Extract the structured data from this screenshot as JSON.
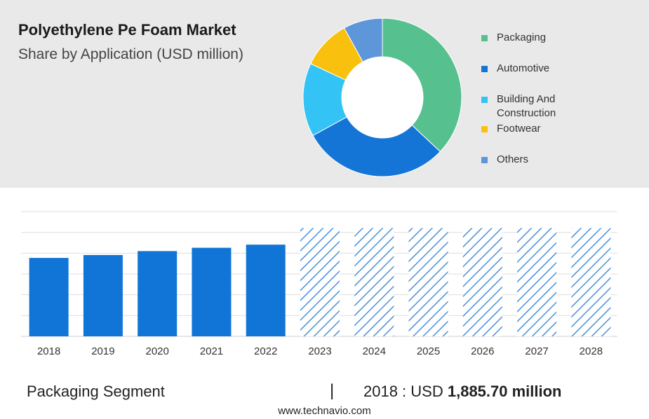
{
  "header": {
    "title": "Polyethylene Pe Foam Market",
    "subtitle": "Share by Application (USD million)"
  },
  "colors": {
    "panel_bg": "#e9e9e9",
    "bar_solid": "#1075d6",
    "bar_hatch": "#4a90d9",
    "grid": "#dedede"
  },
  "chart_data": [
    {
      "type": "pie",
      "donut": true,
      "segments": [
        {
          "label": "Packaging",
          "value": 37,
          "color": "#57c08f"
        },
        {
          "label": "Automotive",
          "value": 30,
          "color": "#1575d6"
        },
        {
          "label": "Building And Construction",
          "value": 15,
          "color": "#33c3f4"
        },
        {
          "label": "Footwear",
          "value": 10,
          "color": "#f9c10d"
        },
        {
          "label": "Others",
          "value": 8,
          "color": "#5e97d9"
        }
      ]
    },
    {
      "type": "bar",
      "categories": [
        "2018",
        "2019",
        "2020",
        "2021",
        "2022",
        "2023",
        "2024",
        "2025",
        "2026",
        "2027",
        "2028"
      ],
      "values": [
        1885.7,
        1955,
        2050,
        2130,
        2205,
        2605,
        2605,
        2605,
        2605,
        2605,
        2605
      ],
      "forecast_from": "2023",
      "ylim": [
        0,
        3000
      ],
      "grid": true
    }
  ],
  "footer": {
    "segment": "Packaging Segment",
    "divider": "|",
    "value_prefix": "2018 : USD",
    "value_bold": "1,885.70 million",
    "url": "www.technavio.com"
  }
}
